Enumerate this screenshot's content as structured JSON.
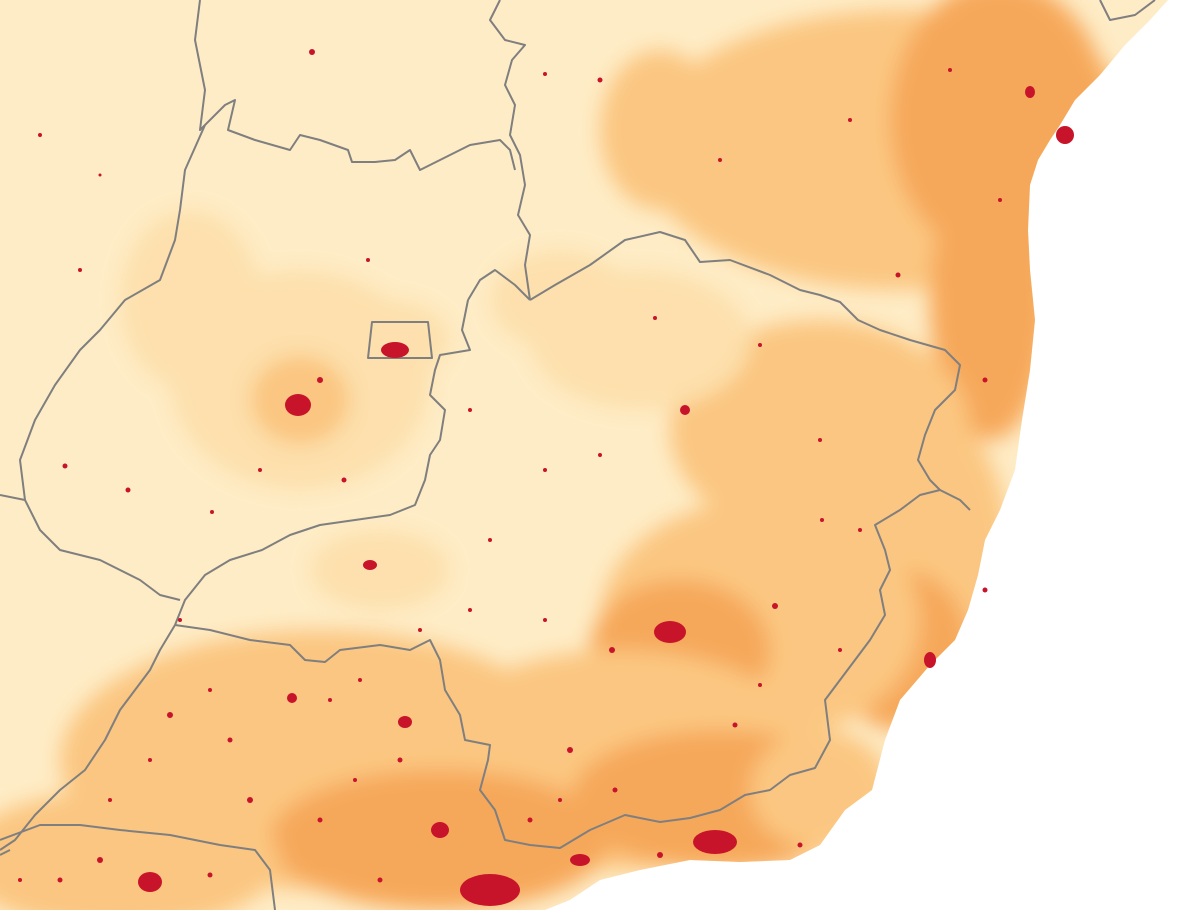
{
  "map": {
    "colors": {
      "ocean": "#ffffff",
      "land_base": "#feecc6",
      "density_low": "#fde0ac",
      "density_mid": "#fbc57e",
      "density_high": "#f6a555",
      "urban": "#c8142a",
      "border": "#7f7f7f"
    },
    "legend": null,
    "labels": []
  }
}
